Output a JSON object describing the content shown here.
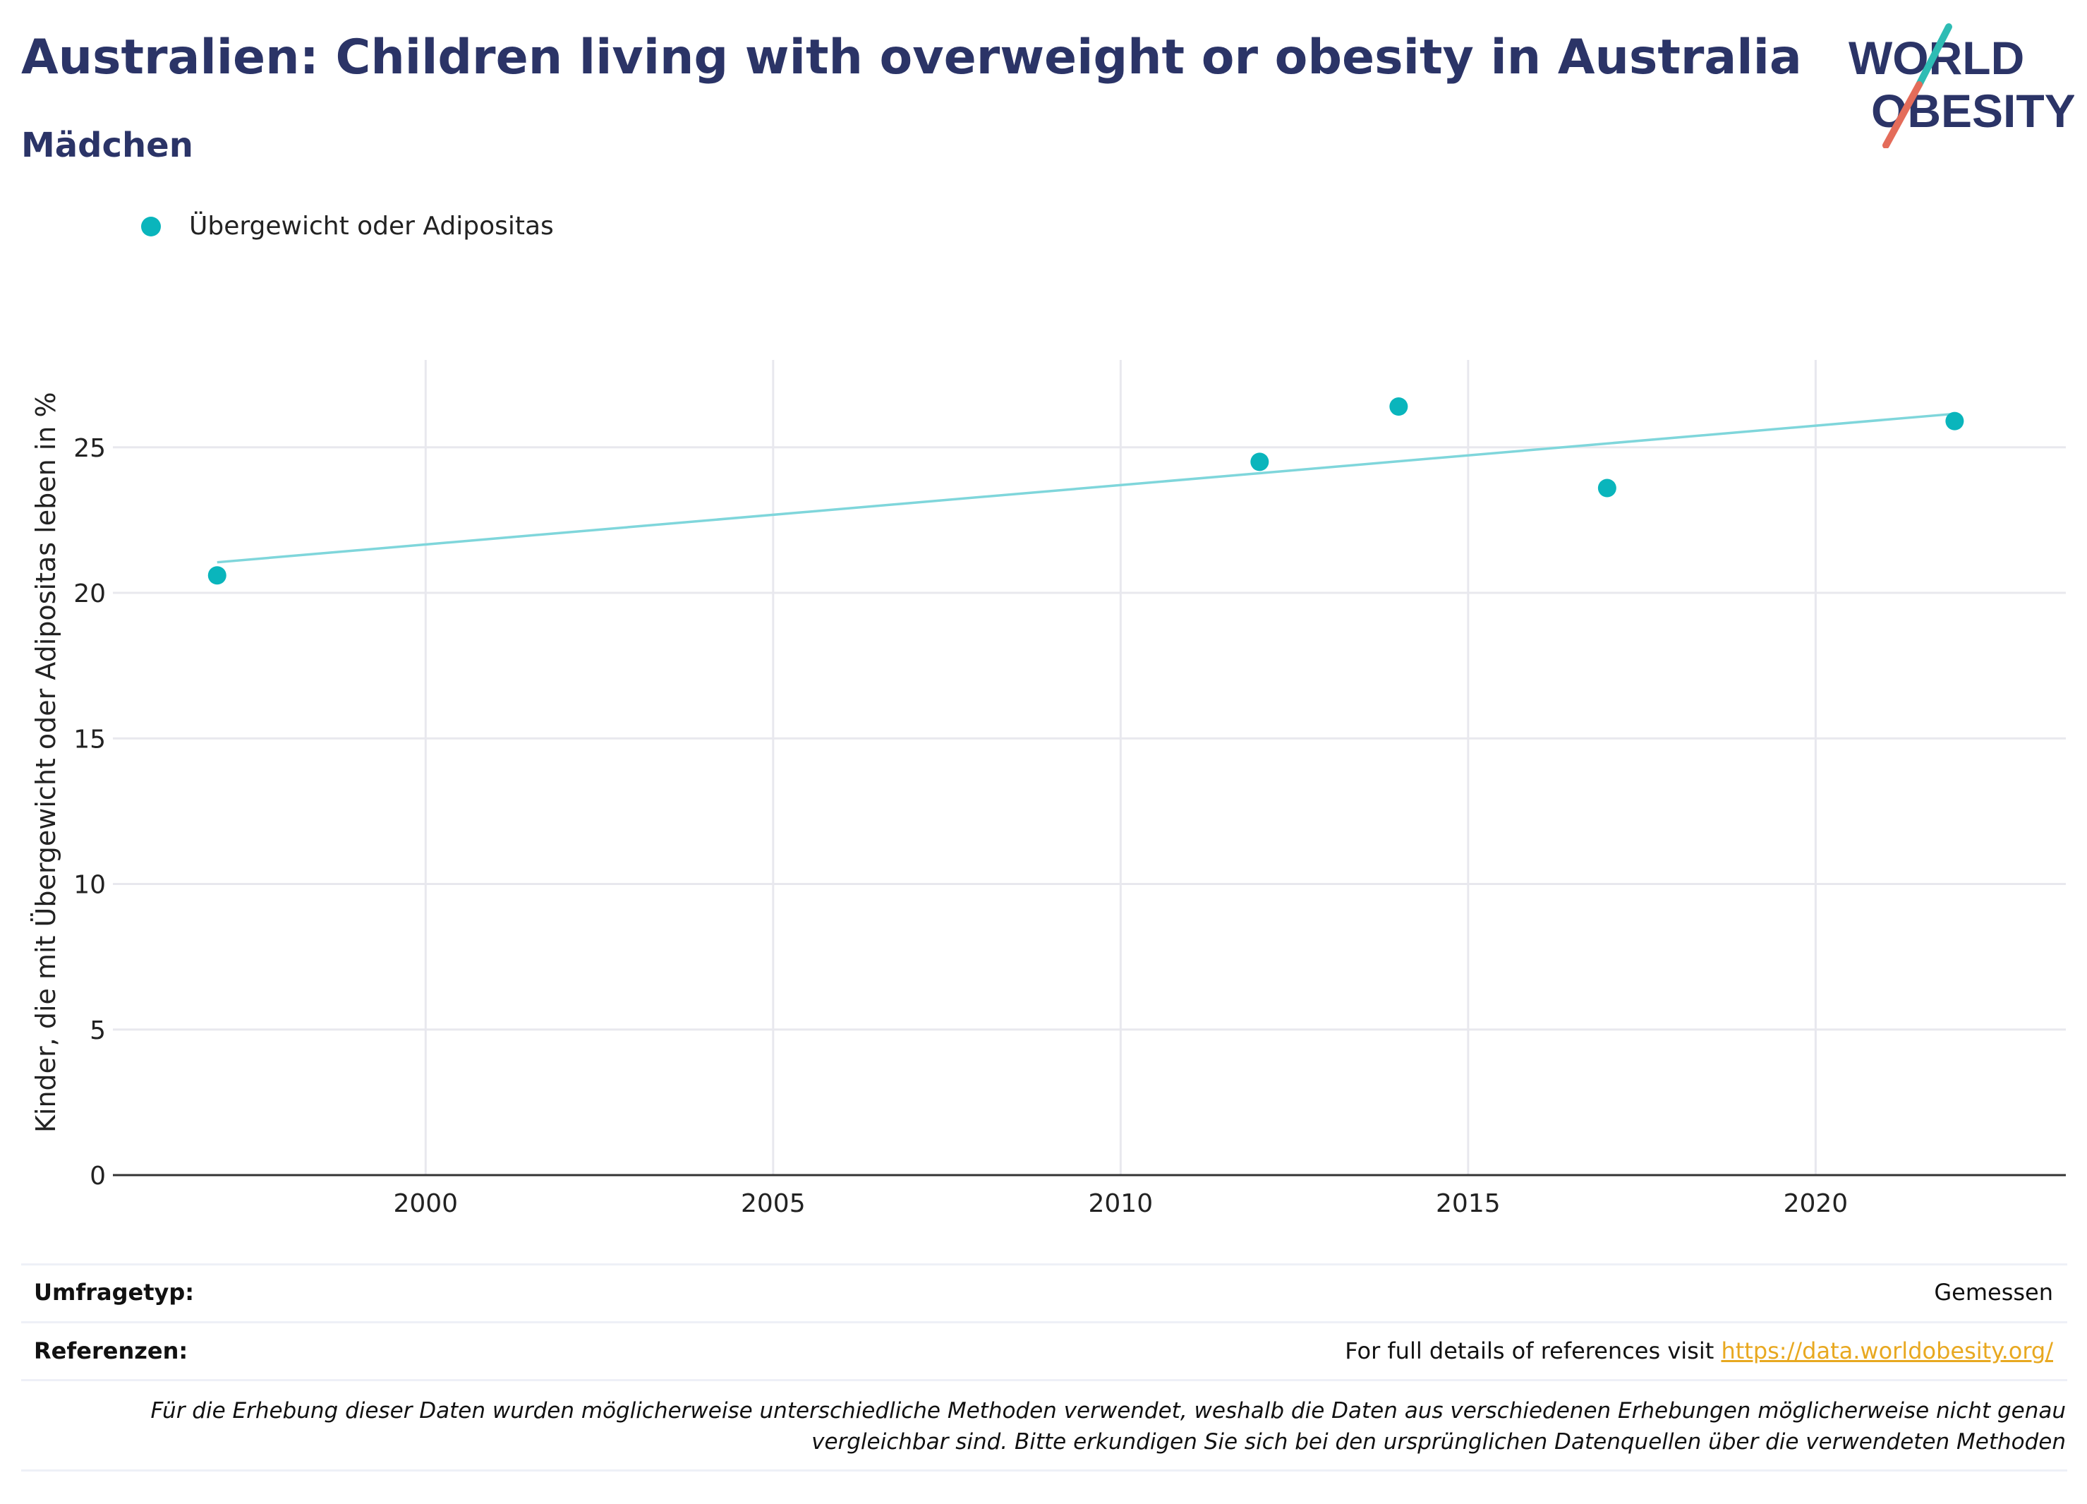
{
  "header": {
    "title": "Australien: Children living with overweight or obesity in Australia",
    "subtitle": "Mädchen"
  },
  "logo": {
    "line1": "WORLD",
    "line2": "OBESITY"
  },
  "legend": {
    "label": "Übergewicht oder Adipositas"
  },
  "colors": {
    "series": "#0ab5bc",
    "trend": "#7fd6db",
    "title": "#2b3467",
    "link": "#e8a820"
  },
  "chart_data": {
    "type": "scatter",
    "ylabel": "Kinder, die mit Übergewicht oder Adipositas leben in %",
    "xlabel": "",
    "xlim": [
      1995.5,
      2023.6
    ],
    "ylim": [
      0,
      28
    ],
    "xticks": [
      2000,
      2005,
      2010,
      2015,
      2020
    ],
    "yticks": [
      0,
      5,
      10,
      15,
      20,
      25
    ],
    "grid": true,
    "series": [
      {
        "name": "Übergewicht oder Adipositas",
        "x": [
          1997,
          2012,
          2014,
          2017,
          2022
        ],
        "y": [
          20.6,
          24.5,
          26.4,
          23.6,
          25.9
        ]
      }
    ],
    "trendline": {
      "x": [
        1997,
        2022
      ],
      "y": [
        21.05,
        26.15
      ]
    }
  },
  "footer": {
    "survey_label": "Umfragetyp:",
    "survey_value": "Gemessen",
    "ref_label": "Referenzen:",
    "ref_text": "For full details of references visit ",
    "ref_link": "https://data.worldobesity.org/",
    "note": "Für die Erhebung dieser Daten wurden möglicherweise unterschiedliche Methoden verwendet, weshalb die Daten aus verschiedenen Erhebungen möglicherweise nicht genau vergleichbar sind. Bitte erkundigen Sie sich bei den ursprünglichen Datenquellen über die verwendeten Methoden"
  }
}
